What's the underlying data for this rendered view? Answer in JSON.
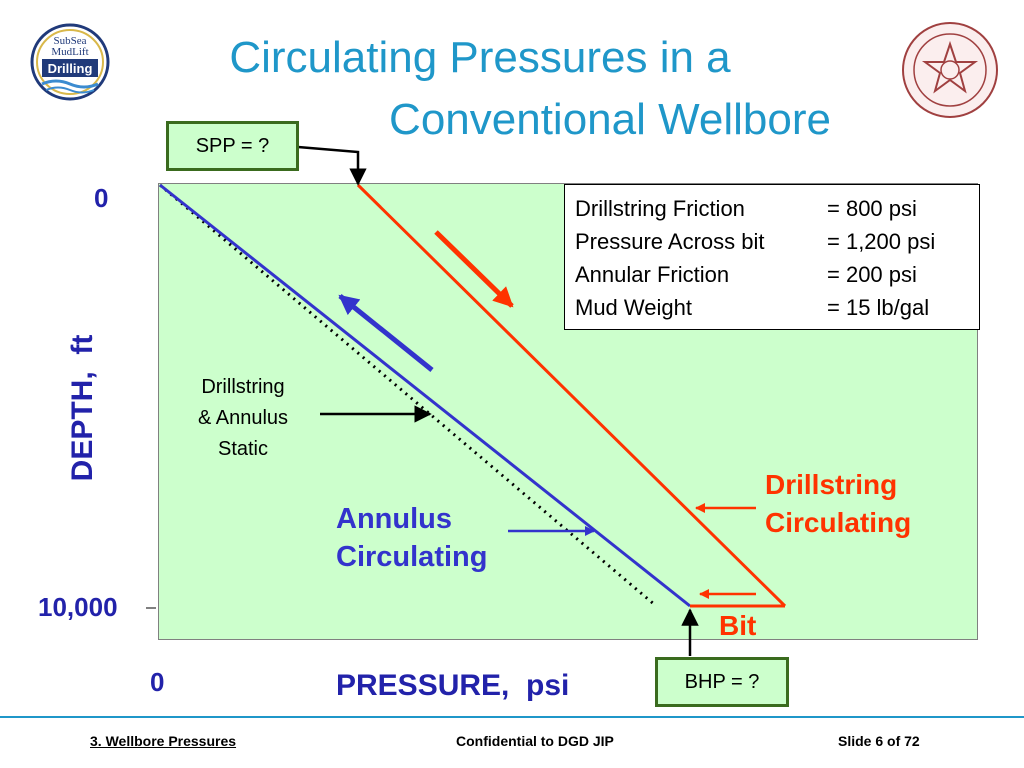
{
  "title": {
    "line1": "Circulating Pressures in a",
    "line2": "Conventional Wellbore"
  },
  "logo_left": {
    "text_top": "SubSea",
    "text_mid": "MudLift",
    "text_bottom": "Drilling"
  },
  "logo_right": {
    "name": "university-seal"
  },
  "spp_label": "SPP = ?",
  "bhp_label": "BHP = ?",
  "info_box": [
    {
      "label": "Drillstring Friction",
      "value": "= 800 psi"
    },
    {
      "label": "Pressure Across bit",
      "value": "= 1,200 psi"
    },
    {
      "label": "Annular Friction",
      "value": "= 200 psi"
    },
    {
      "label": "Mud Weight",
      "value": "= 15 lb/gal"
    }
  ],
  "static_label": [
    "Drillstring",
    "& Annulus",
    "Static"
  ],
  "annulus_label": [
    "Annulus",
    "Circulating"
  ],
  "drillstring_label": [
    "Drillstring",
    "Circulating"
  ],
  "bit_label": "Bit",
  "y_axis": {
    "label": "DEPTH,  ft",
    "top_tick": "0",
    "bottom_tick": "10,000"
  },
  "x_axis": {
    "label": "PRESSURE,  psi",
    "origin_tick": "0"
  },
  "colors": {
    "title": "#1f97c9",
    "annulus": "#3333cc",
    "drillstring": "#ff3300",
    "plot_bg": "#ccffcc",
    "box_border": "#3a6b1e"
  },
  "footer": {
    "left": "3. Wellbore Pressures",
    "center": "Confidential to DGD JIP",
    "right": "Slide 6 of 72"
  }
}
